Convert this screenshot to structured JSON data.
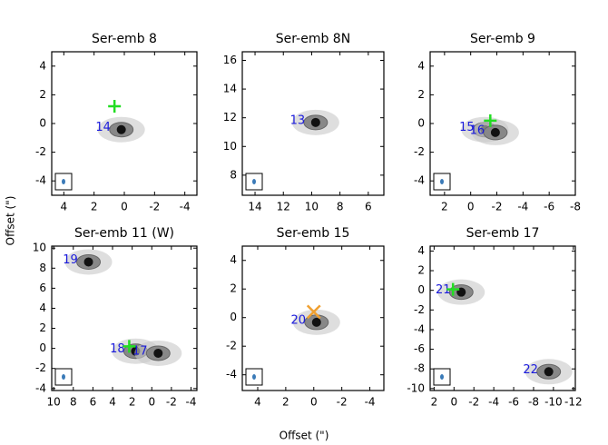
{
  "x_label": "Offset (\")",
  "y_label": "Offset (\")",
  "chart_data": [
    {
      "type": "image",
      "title": "Ser-emb 8",
      "xlim": [
        4.8,
        -4.8
      ],
      "ylim": [
        -5,
        5
      ],
      "xticks": [
        4,
        2,
        0,
        -2,
        -4
      ],
      "yticks": [
        -4,
        -2,
        0,
        2,
        4
      ],
      "sources": [
        {
          "label": "14",
          "x": 1.4,
          "y": -0.3
        }
      ],
      "markers": [
        {
          "color": "#22dd22",
          "shape": "plus",
          "x": 0.65,
          "y": 1.2
        }
      ]
    },
    {
      "type": "image",
      "title": "Ser-emb 8N",
      "xlim": [
        14.9,
        4.9
      ],
      "ylim": [
        6.6,
        16.6
      ],
      "xticks": [
        14,
        12,
        10,
        8,
        6
      ],
      "yticks": [
        8,
        10,
        12,
        14,
        16
      ],
      "sources": [
        {
          "label": "13",
          "x": 11.0,
          "y": 11.8
        }
      ],
      "markers": []
    },
    {
      "type": "image",
      "title": "Ser-emb 9",
      "xlim": [
        3.1,
        -8.0
      ],
      "ylim": [
        -5,
        5
      ],
      "xticks": [
        2,
        0,
        -2,
        -4,
        -6,
        -8
      ],
      "yticks": [
        -4,
        -2,
        0,
        2,
        4
      ],
      "sources": [
        {
          "label": "15",
          "x": 0.3,
          "y": -0.3
        },
        {
          "label": "16",
          "x": -0.5,
          "y": -0.5
        }
      ],
      "markers": [
        {
          "color": "#22dd22",
          "shape": "plus",
          "x": -1.5,
          "y": 0.2
        }
      ]
    },
    {
      "type": "image",
      "title": "Ser-emb 11 (W)",
      "xlim": [
        10.2,
        -4.6
      ],
      "ylim": [
        -4.2,
        10.2
      ],
      "xticks": [
        10,
        8,
        6,
        4,
        2,
        0,
        -2,
        -4
      ],
      "yticks": [
        -4,
        -2,
        0,
        2,
        4,
        6,
        8,
        10
      ],
      "sources": [
        {
          "label": "19",
          "x": 8.3,
          "y": 8.8
        },
        {
          "label": "18",
          "x": 3.5,
          "y": -0.1
        },
        {
          "label": "17",
          "x": 1.2,
          "y": -0.3
        }
      ],
      "markers": [
        {
          "color": "#22dd22",
          "shape": "plus",
          "x": 2.3,
          "y": 0.2
        }
      ]
    },
    {
      "type": "image",
      "title": "Ser-emb 15",
      "xlim": [
        5.1,
        -5.0
      ],
      "ylim": [
        -5.1,
        5.0
      ],
      "xticks": [
        4,
        2,
        0,
        -2,
        -4
      ],
      "yticks": [
        -4,
        -2,
        0,
        2,
        4
      ],
      "sources": [
        {
          "label": "20",
          "x": 1.1,
          "y": -0.2
        }
      ],
      "markers": [
        {
          "color": "#f0a030",
          "shape": "x",
          "x": 0.0,
          "y": 0.4
        }
      ]
    },
    {
      "type": "image",
      "title": "Ser-emb 17",
      "xlim": [
        2.4,
        -12.2
      ],
      "ylim": [
        -10.2,
        4.5
      ],
      "xticks": [
        2,
        0,
        -2,
        -4,
        -6,
        -8,
        -10,
        -12
      ],
      "yticks": [
        -10,
        -8,
        -6,
        -4,
        -2,
        0,
        2,
        4
      ],
      "sources": [
        {
          "label": "21",
          "x": 1.1,
          "y": 0.0
        },
        {
          "label": "22",
          "x": -7.7,
          "y": -8.1
        }
      ],
      "markers": [
        {
          "color": "#22dd22",
          "shape": "plus",
          "x": 0.1,
          "y": 0.1
        }
      ]
    }
  ]
}
